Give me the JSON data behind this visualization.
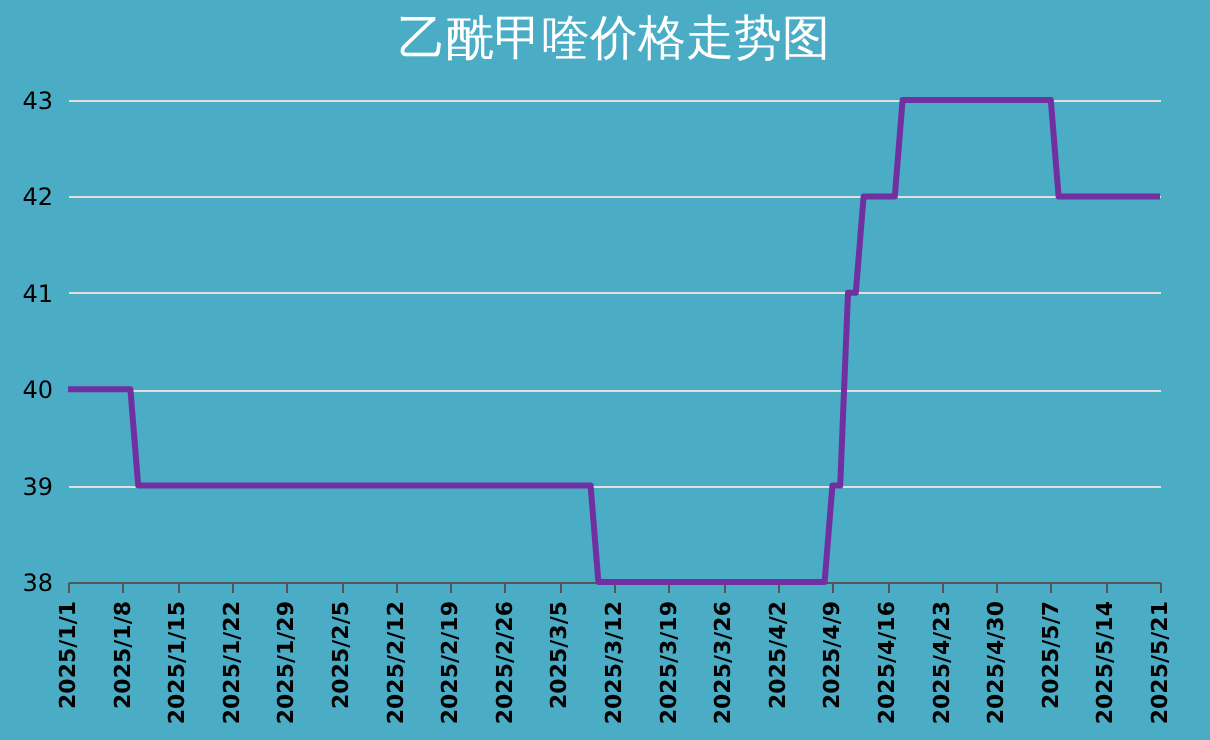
{
  "chart_data": {
    "type": "line",
    "title": "乙酰甲喹价格走势图",
    "x": [
      "2025-01-01",
      "2025-01-09",
      "2025-01-10",
      "2025-03-09",
      "2025-03-10",
      "2025-04-08",
      "2025-04-09",
      "2025-04-10",
      "2025-04-11",
      "2025-04-12",
      "2025-04-13",
      "2025-04-17",
      "2025-04-18",
      "2025-05-07",
      "2025-05-08",
      "2025-05-21"
    ],
    "series": [
      {
        "color": "#7030a0",
        "values": [
          40,
          40,
          39,
          39,
          38,
          38,
          39,
          39,
          41,
          41,
          42,
          42,
          43,
          43,
          42,
          42
        ]
      }
    ],
    "xlim": [
      "2025-01-01",
      "2025-05-21"
    ],
    "xticks": [
      {
        "value": "2025-01-01",
        "label": "2025/1/1"
      },
      {
        "value": "2025-01-08",
        "label": "2025/1/8"
      },
      {
        "value": "2025-01-15",
        "label": "2025/1/15"
      },
      {
        "value": "2025-01-22",
        "label": "2025/1/22"
      },
      {
        "value": "2025-01-29",
        "label": "2025/1/29"
      },
      {
        "value": "2025-02-05",
        "label": "2025/2/5"
      },
      {
        "value": "2025-02-12",
        "label": "2025/2/12"
      },
      {
        "value": "2025-02-19",
        "label": "2025/2/19"
      },
      {
        "value": "2025-02-26",
        "label": "2025/2/26"
      },
      {
        "value": "2025-03-05",
        "label": "2025/3/5"
      },
      {
        "value": "2025-03-12",
        "label": "2025/3/12"
      },
      {
        "value": "2025-03-19",
        "label": "2025/3/19"
      },
      {
        "value": "2025-03-26",
        "label": "2025/3/26"
      },
      {
        "value": "2025-04-02",
        "label": "2025/4/2"
      },
      {
        "value": "2025-04-09",
        "label": "2025/4/9"
      },
      {
        "value": "2025-04-16",
        "label": "2025/4/16"
      },
      {
        "value": "2025-04-23",
        "label": "2025/4/23"
      },
      {
        "value": "2025-04-30",
        "label": "2025/4/30"
      },
      {
        "value": "2025-05-07",
        "label": "2025/5/7"
      },
      {
        "value": "2025-05-14",
        "label": "2025/5/14"
      },
      {
        "value": "2025-05-21",
        "label": "2025/5/21"
      }
    ],
    "ylim": [
      38,
      43
    ],
    "yticks": [
      38,
      39,
      40,
      41,
      42,
      43
    ],
    "grid": "y",
    "marker": "none",
    "line_style": "solid"
  }
}
